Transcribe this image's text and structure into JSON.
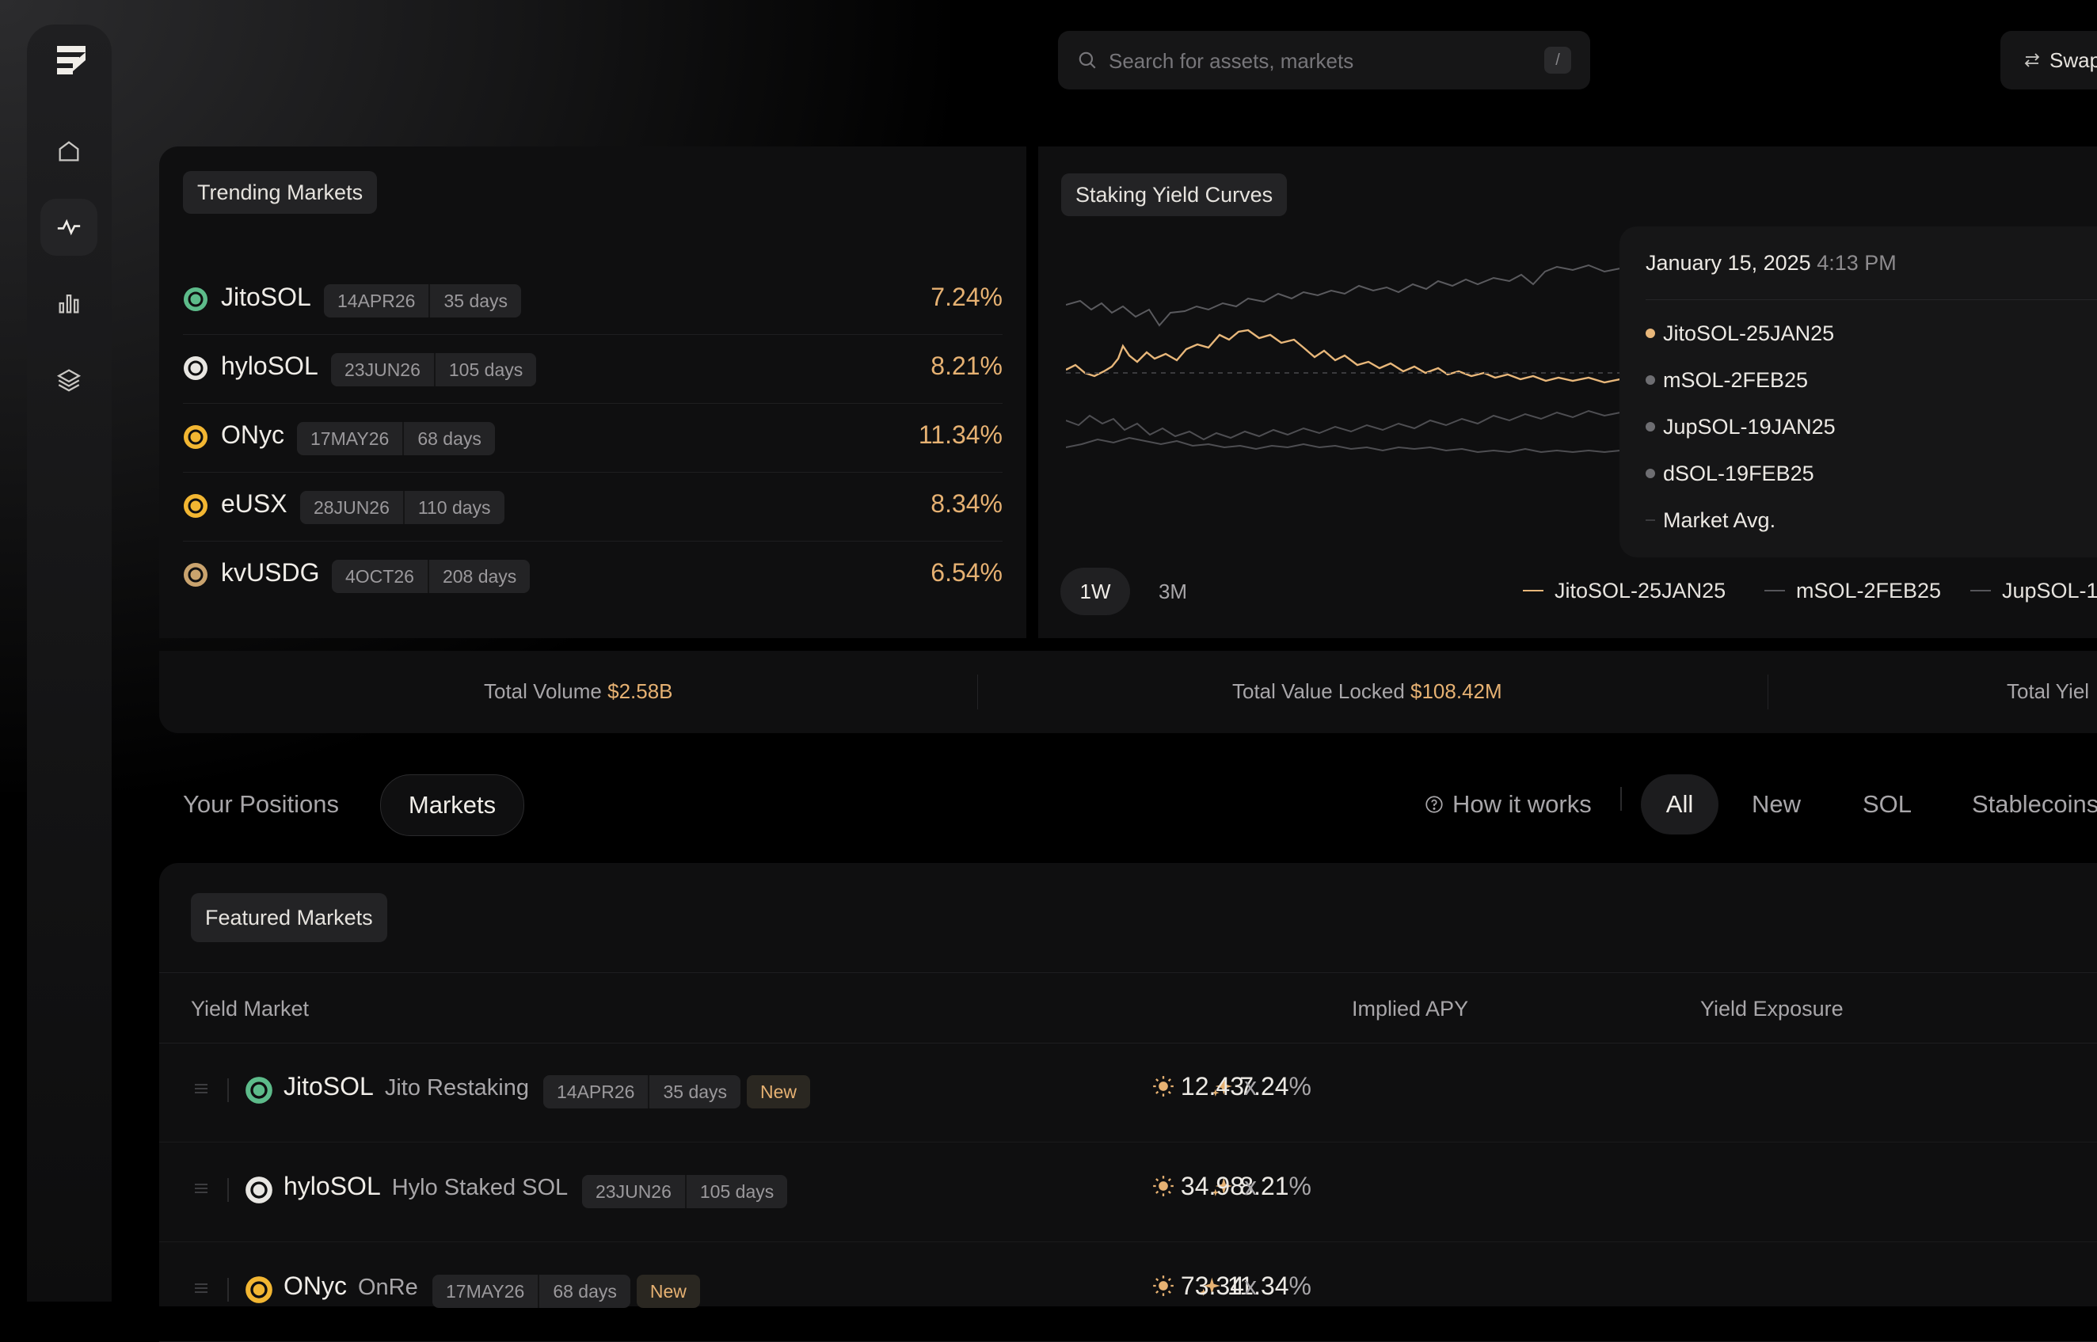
{
  "search": {
    "placeholder": "Search for assets, markets",
    "shortcut": "/"
  },
  "header": {
    "swap_label": "Swap"
  },
  "nav": [
    "home-icon",
    "activity-icon",
    "bar-chart-icon",
    "layers-icon"
  ],
  "trending": {
    "title": "Trending Markets",
    "items": [
      {
        "name": "JitoSOL",
        "maturity": "14APR26",
        "days": "35 days",
        "apy": "7.24%",
        "color": "#5dbb8a"
      },
      {
        "name": "hyloSOL",
        "maturity": "23JUN26",
        "days": "105 days",
        "apy": "8.21%",
        "color": "#e8e6e2"
      },
      {
        "name": "ONyc",
        "maturity": "17MAY26",
        "days": "68 days",
        "apy": "11.34%",
        "color": "#f2b632"
      },
      {
        "name": "eUSX",
        "maturity": "28JUN26",
        "days": "110 days",
        "apy": "8.34%",
        "color": "#f2b632"
      },
      {
        "name": "kvUSDG",
        "maturity": "4OCT26",
        "days": "208 days",
        "apy": "6.54%",
        "color": "#c9a36e"
      }
    ]
  },
  "yield_curves": {
    "title": "Staking Yield Curves",
    "tooltip": {
      "date": "January 15, 2025",
      "time": "4:13 PM",
      "items": [
        "JitoSOL-25JAN25",
        "mSOL-2FEB25",
        "JupSOL-19JAN25",
        "dSOL-19FEB25",
        "Market Avg."
      ]
    },
    "ranges": [
      "1W",
      "3M"
    ],
    "legend": [
      "JitoSOL-25JAN25",
      "mSOL-2FEB25",
      "JupSOL-1"
    ]
  },
  "colors": {
    "accent": "#e6b172",
    "series_primary": "#e8b77a",
    "series_muted": "#6e6e72"
  },
  "stats": [
    {
      "label": "Total Volume",
      "value": "$2.58B"
    },
    {
      "label": "Total Value Locked",
      "value": "$108.42M"
    },
    {
      "label": "Total Yiel",
      "value": ""
    }
  ],
  "tabs": {
    "positions": "Your Positions",
    "markets": "Markets"
  },
  "filters": {
    "how": "How it works",
    "all": "All",
    "new": "New",
    "sol": "SOL",
    "stable": "Stablecoins"
  },
  "featured": {
    "title": "Featured Markets",
    "columns": {
      "market": "Yield Market",
      "apy": "Implied APY",
      "exposure": "Yield Exposure"
    },
    "rows": [
      {
        "name": "JitoSOL",
        "sub": "Jito Restaking",
        "maturity": "14APR26",
        "days": "35 days",
        "badge": "New",
        "apy": "7.24",
        "apy_unit": "%",
        "exposure": "12.43",
        "exp_unit": "x",
        "color": "#5dbb8a"
      },
      {
        "name": "hyloSOL",
        "sub": "Hylo Staked SOL",
        "maturity": "23JUN26",
        "days": "105 days",
        "badge": "",
        "apy": "8.21",
        "apy_unit": "%",
        "exposure": "34.98",
        "exp_unit": "x",
        "color": "#e8e6e2"
      },
      {
        "name": "ONyc",
        "sub": "OnRe",
        "maturity": "17MAY26",
        "days": "68 days",
        "badge": "New",
        "apy": "11.34",
        "apy_unit": "%",
        "exposure": "73.34",
        "exp_unit": "x",
        "color": "#f2b632"
      }
    ]
  }
}
